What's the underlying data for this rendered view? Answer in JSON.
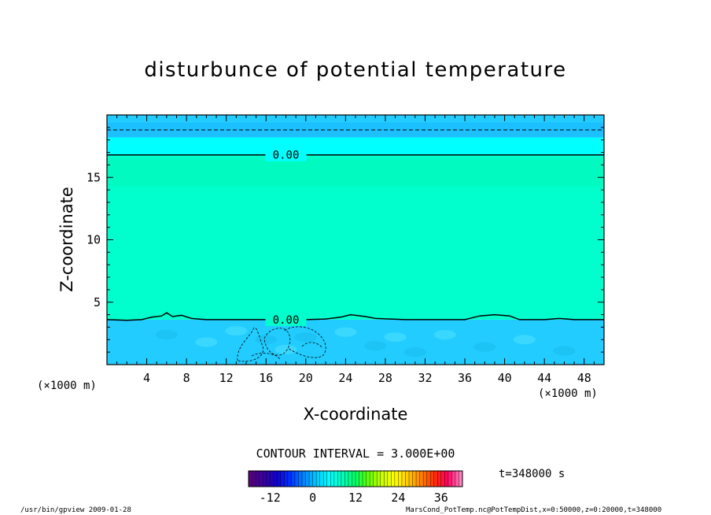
{
  "chart_data": {
    "type": "heatmap",
    "title": "disturbunce of potential temperature",
    "xlabel": "X-coordinate",
    "ylabel": "Z-coordinate",
    "x_unit_label": "(×1000 m)",
    "xlim": [
      0,
      50
    ],
    "ylim": [
      0,
      20
    ],
    "x_ticks": [
      4,
      8,
      12,
      16,
      20,
      24,
      28,
      32,
      36,
      40,
      44,
      48
    ],
    "y_ticks": [
      5,
      10,
      15
    ],
    "layers": [
      {
        "z_range": [
          0,
          3.6
        ],
        "value_range": [
          -3,
          3
        ],
        "color": "#22ccff"
      },
      {
        "z_range": [
          3.6,
          16.8
        ],
        "value_range": [
          0,
          3
        ],
        "color": "#00ffcc"
      },
      {
        "z_range": [
          16.8,
          18.2
        ],
        "value_range": [
          -3,
          0
        ],
        "color": "#00ffff"
      },
      {
        "z_range": [
          18.2,
          20
        ],
        "value_range": [
          -6,
          -3
        ],
        "color": "#22ccff"
      }
    ],
    "contours": [
      {
        "value": 0.0,
        "label": "0.00",
        "style": "solid",
        "points": [
          [
            0,
            3.6
          ],
          [
            2,
            3.55
          ],
          [
            3.5,
            3.6
          ],
          [
            4.5,
            3.8
          ],
          [
            5.5,
            3.9
          ],
          [
            6,
            4.15
          ],
          [
            6.6,
            3.85
          ],
          [
            7.5,
            3.95
          ],
          [
            8.5,
            3.7
          ],
          [
            10,
            3.6
          ],
          [
            16,
            3.6
          ],
          [
            20,
            3.6
          ],
          [
            22,
            3.65
          ],
          [
            23.5,
            3.8
          ],
          [
            24.5,
            4.0
          ],
          [
            26,
            3.85
          ],
          [
            27,
            3.7
          ],
          [
            30,
            3.6
          ],
          [
            36,
            3.6
          ],
          [
            37.5,
            3.9
          ],
          [
            39,
            4.0
          ],
          [
            40.5,
            3.9
          ],
          [
            41.5,
            3.6
          ],
          [
            44,
            3.6
          ],
          [
            45.5,
            3.7
          ],
          [
            47,
            3.6
          ],
          [
            50,
            3.6
          ]
        ]
      },
      {
        "value": 0.0,
        "label": "0.00",
        "style": "solid",
        "points": [
          [
            0,
            16.8
          ],
          [
            50,
            16.8
          ]
        ]
      },
      {
        "value": -3.0,
        "label": "",
        "style": "dashed",
        "points": [
          [
            0,
            18.8
          ],
          [
            50,
            18.8
          ]
        ]
      }
    ]
  },
  "colorbar": {
    "ticks": [
      "-12",
      "0",
      "12",
      "24",
      "36"
    ],
    "range": [
      -18,
      42
    ],
    "colors": [
      "#5a007f",
      "#3a00a0",
      "#1000c8",
      "#0030ff",
      "#0080ff",
      "#00c8ff",
      "#00ffff",
      "#00ffbe",
      "#00ff64",
      "#64ff00",
      "#c8ff00",
      "#ffff00",
      "#ffc800",
      "#ff8000",
      "#ff3000",
      "#ff0060",
      "#ff80c0"
    ]
  },
  "annotations": {
    "contour_interval": "CONTOUR INTERVAL = 3.000E+00",
    "time": "t=348000 s",
    "footer_left": "/usr/bin/gpview   2009-01-28",
    "footer_right": "MarsCond_PotTemp.nc@PotTempDist,x=0:50000,z=0:20000,t=348000"
  }
}
